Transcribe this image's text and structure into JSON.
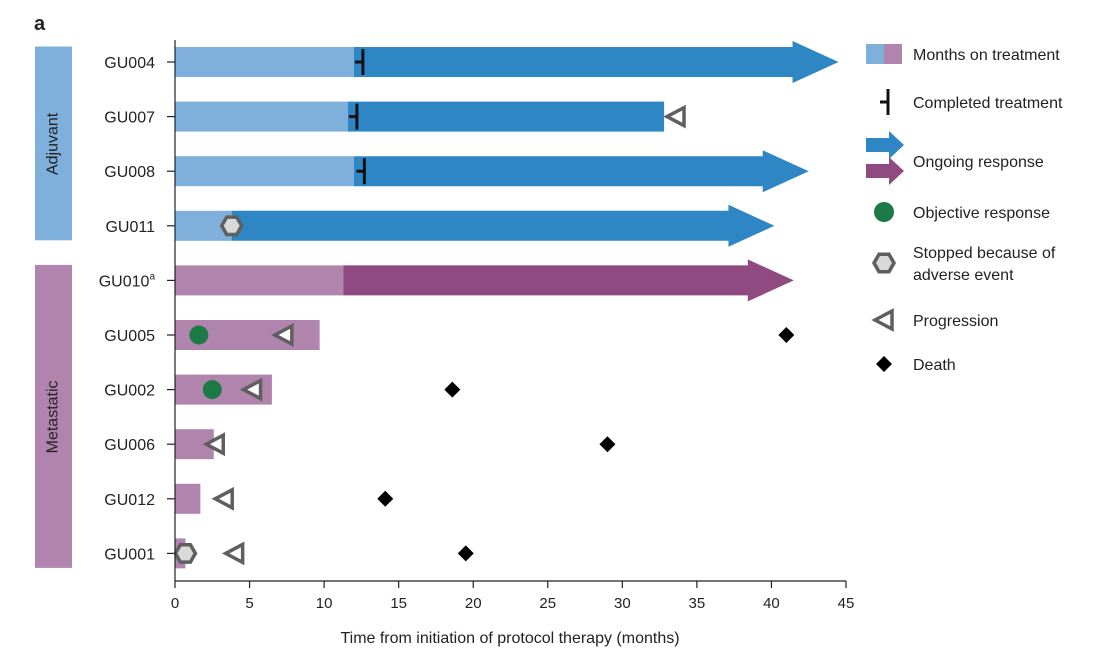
{
  "chart_data": {
    "type": "swimmer",
    "panel_label": "a",
    "xlabel": "Time from initiation of protocol therapy (months)",
    "xlim": [
      0,
      45
    ],
    "xticks": [
      0,
      5,
      10,
      15,
      20,
      25,
      30,
      35,
      40,
      45
    ],
    "groups": [
      {
        "name": "Adjuvant",
        "color": "#7fb0db",
        "patients": [
          "GU004",
          "GU007",
          "GU008",
          "GU011"
        ]
      },
      {
        "name": "Metastatic",
        "color": "#b184ad",
        "patients": [
          "GU010",
          "GU005",
          "GU002",
          "GU006",
          "GU012",
          "GU001"
        ]
      }
    ],
    "patients": [
      {
        "id": "GU004",
        "superscript": "",
        "group": "Adjuvant",
        "treatment_end": 12,
        "response_end": 44.5,
        "ongoing": true,
        "completed": 12.6,
        "objective_response": null,
        "adverse_event": null,
        "progression": null,
        "death": null
      },
      {
        "id": "GU007",
        "superscript": "",
        "group": "Adjuvant",
        "treatment_end": 11.6,
        "response_end": 32.8,
        "ongoing": false,
        "completed": 12.2,
        "objective_response": null,
        "adverse_event": null,
        "progression": 33.6,
        "death": null
      },
      {
        "id": "GU008",
        "superscript": "",
        "group": "Adjuvant",
        "treatment_end": 12,
        "response_end": 42.5,
        "ongoing": true,
        "completed": 12.7,
        "objective_response": null,
        "adverse_event": null,
        "progression": null,
        "death": null
      },
      {
        "id": "GU011",
        "superscript": "",
        "group": "Adjuvant",
        "treatment_end": 3.8,
        "response_end": 40.2,
        "ongoing": true,
        "completed": null,
        "objective_response": null,
        "adverse_event": 3.8,
        "progression": null,
        "death": null
      },
      {
        "id": "GU010",
        "superscript": "a",
        "group": "Metastatic",
        "treatment_end": 11.3,
        "response_end": 41.5,
        "ongoing": true,
        "completed": null,
        "objective_response": null,
        "adverse_event": null,
        "progression": null,
        "death": null
      },
      {
        "id": "GU005",
        "superscript": "",
        "group": "Metastatic",
        "treatment_end": 9.7,
        "response_end": null,
        "ongoing": false,
        "completed": null,
        "objective_response": 1.6,
        "adverse_event": null,
        "progression": 7.3,
        "death": 41
      },
      {
        "id": "GU002",
        "superscript": "",
        "group": "Metastatic",
        "treatment_end": 6.5,
        "response_end": null,
        "ongoing": false,
        "completed": null,
        "objective_response": 2.5,
        "adverse_event": null,
        "progression": 5.2,
        "death": 18.6
      },
      {
        "id": "GU006",
        "superscript": "",
        "group": "Metastatic",
        "treatment_end": 2.6,
        "response_end": null,
        "ongoing": false,
        "completed": null,
        "objective_response": null,
        "adverse_event": null,
        "progression": 2.7,
        "death": 29
      },
      {
        "id": "GU012",
        "superscript": "",
        "group": "Metastatic",
        "treatment_end": 1.7,
        "response_end": null,
        "ongoing": false,
        "completed": null,
        "objective_response": null,
        "adverse_event": null,
        "progression": 3.3,
        "death": 14.1
      },
      {
        "id": "GU001",
        "superscript": "",
        "group": "Metastatic",
        "treatment_end": 0.7,
        "response_end": null,
        "ongoing": false,
        "completed": null,
        "objective_response": null,
        "adverse_event": 0.7,
        "progression": 4,
        "death": 19.5
      }
    ],
    "colors": {
      "adjuvant_treatment": "#7fb0db",
      "adjuvant_response": "#2e86c5",
      "metastatic_treatment": "#b184ad",
      "metastatic_response": "#8f4a82",
      "objective_response": "#1b7a45",
      "marker_gray": "#5f5f5f",
      "hexagon_fill": "#d9d9d9",
      "death": "#000000"
    },
    "legend": {
      "position": "right",
      "items": [
        {
          "key": "months",
          "label": "Months on treatment"
        },
        {
          "key": "completed",
          "label": "Completed treatment"
        },
        {
          "key": "ongoing",
          "label": "Ongoing response"
        },
        {
          "key": "objective",
          "label": "Objective response"
        },
        {
          "key": "adverse",
          "label": "Stopped because of",
          "label2": "adverse event"
        },
        {
          "key": "progression",
          "label": "Progression"
        },
        {
          "key": "death",
          "label": "Death"
        }
      ]
    }
  }
}
